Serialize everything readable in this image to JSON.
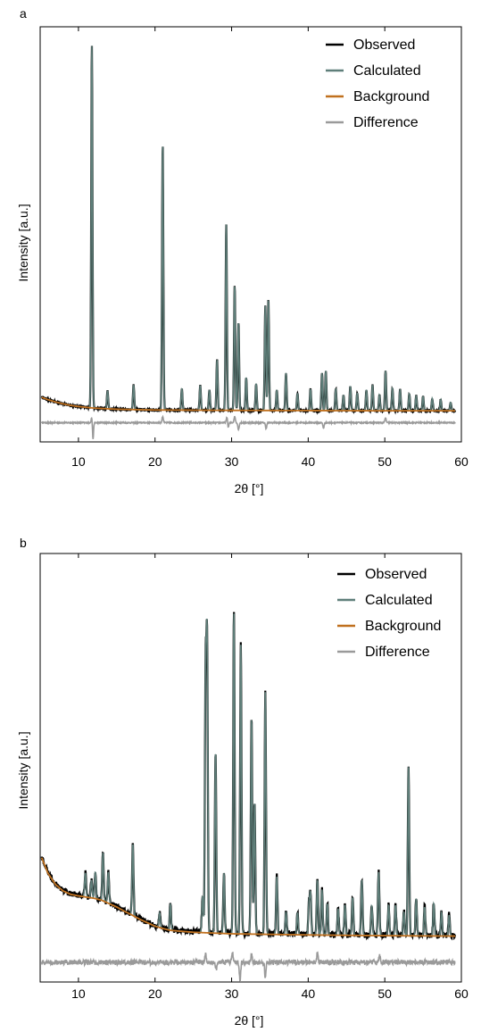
{
  "colors": {
    "observed": "#000000",
    "calculated": "#5f7f7a",
    "background": "#c0701e",
    "difference": "#9a9a9a"
  },
  "chart_data": [
    {
      "panel_label": "a",
      "type": "line",
      "xlabel": "2θ [°]",
      "ylabel": "Intensity [a.u.]",
      "xlim": [
        5,
        60
      ],
      "xticks": [
        10,
        20,
        30,
        40,
        50,
        60
      ],
      "xtick_labels": [
        "10",
        "20",
        "30",
        "40",
        "50",
        "60"
      ],
      "legend_position": "top-right",
      "legend": [
        {
          "name": "Observed",
          "color_key": "observed"
        },
        {
          "name": "Calculated",
          "color_key": "calculated"
        },
        {
          "name": "Background",
          "color_key": "background"
        },
        {
          "name": "Difference",
          "color_key": "difference"
        }
      ],
      "ylim": [
        -8,
        100
      ],
      "background_curve": [
        [
          5.2,
          3.6
        ],
        [
          6,
          3.0
        ],
        [
          7,
          2.4
        ],
        [
          8,
          1.9
        ],
        [
          9,
          1.5
        ],
        [
          10,
          1.2
        ],
        [
          12,
          0.8
        ],
        [
          15,
          0.5
        ],
        [
          20,
          0.3
        ],
        [
          30,
          0.2
        ],
        [
          40,
          0.15
        ],
        [
          50,
          0.1
        ],
        [
          59.2,
          0.1
        ]
      ],
      "peaks": [
        [
          11.75,
          94.5
        ],
        [
          13.8,
          4.7
        ],
        [
          17.2,
          6.4
        ],
        [
          21.0,
          69.5
        ],
        [
          23.5,
          5.6
        ],
        [
          25.9,
          6.5
        ],
        [
          27.1,
          5.3
        ],
        [
          28.1,
          13.2
        ],
        [
          29.3,
          48.5
        ],
        [
          30.4,
          32.6
        ],
        [
          30.9,
          22.9
        ],
        [
          31.9,
          8.6
        ],
        [
          33.2,
          7.0
        ],
        [
          34.4,
          27.2
        ],
        [
          34.8,
          29.1
        ],
        [
          35.9,
          5.4
        ],
        [
          37.1,
          9.8
        ],
        [
          38.6,
          4.5
        ],
        [
          40.3,
          5.6
        ],
        [
          41.8,
          9.8
        ],
        [
          42.3,
          10.4
        ],
        [
          43.6,
          5.7
        ],
        [
          44.6,
          4.0
        ],
        [
          45.5,
          6.4
        ],
        [
          46.4,
          4.6
        ],
        [
          47.6,
          5.5
        ],
        [
          48.4,
          6.7
        ],
        [
          49.3,
          4.1
        ],
        [
          50.1,
          10.4
        ],
        [
          51.0,
          5.9
        ],
        [
          52.0,
          5.6
        ],
        [
          53.2,
          4.5
        ],
        [
          54.1,
          4.0
        ],
        [
          55.0,
          3.8
        ],
        [
          56.2,
          3.2
        ],
        [
          57.3,
          2.9
        ],
        [
          58.6,
          2.2
        ]
      ],
      "peak_width": 0.12,
      "noise_amplitude": 0.35,
      "difference_offset": -3.0,
      "difference_spikes": [
        [
          11.75,
          1.5,
          -4.5
        ],
        [
          21.0,
          1.6
        ],
        [
          29.4,
          1.5,
          -1.5
        ],
        [
          30.4,
          1.6
        ],
        [
          30.9,
          -1.8
        ],
        [
          34.5,
          -1.5
        ],
        [
          42.0,
          -1.4
        ],
        [
          50.1,
          1.2
        ]
      ]
    },
    {
      "panel_label": "b",
      "type": "line",
      "xlabel": "2θ [°]",
      "ylabel": "Intensity [a.u.]",
      "xlim": [
        5,
        60
      ],
      "xticks": [
        10,
        20,
        30,
        40,
        50,
        60
      ],
      "xtick_labels": [
        "10",
        "20",
        "30",
        "40",
        "50",
        "60"
      ],
      "legend_position": "top-right",
      "legend": [
        {
          "name": "Observed",
          "color_key": "observed"
        },
        {
          "name": "Calculated",
          "color_key": "calculated"
        },
        {
          "name": "Background",
          "color_key": "background"
        },
        {
          "name": "Difference",
          "color_key": "difference"
        }
      ],
      "ylim": [
        -12,
        100
      ],
      "background_curve": [
        [
          5.2,
          20.5
        ],
        [
          6,
          16.5
        ],
        [
          7,
          13.5
        ],
        [
          8,
          11.8
        ],
        [
          9,
          10.9
        ],
        [
          10,
          10.5
        ],
        [
          11,
          10.2
        ],
        [
          12,
          9.9
        ],
        [
          13,
          9.4
        ],
        [
          14,
          8.5
        ],
        [
          15,
          7.6
        ],
        [
          16,
          6.5
        ],
        [
          17,
          5.5
        ],
        [
          18,
          4.4
        ],
        [
          19,
          3.5
        ],
        [
          20,
          2.6
        ],
        [
          21,
          2.0
        ],
        [
          22,
          1.5
        ],
        [
          25,
          1.0
        ],
        [
          30,
          0.6
        ],
        [
          40,
          0.3
        ],
        [
          50,
          0.1
        ],
        [
          59.2,
          0.0
        ]
      ],
      "peaks": [
        [
          10.9,
          6.3
        ],
        [
          11.7,
          4.6
        ],
        [
          12.2,
          7.0
        ],
        [
          13.2,
          12.7
        ],
        [
          13.9,
          8.1
        ],
        [
          17.1,
          18.8
        ],
        [
          20.6,
          3.8
        ],
        [
          22.0,
          6.9
        ],
        [
          26.2,
          9.5
        ],
        [
          26.6,
          67.0
        ],
        [
          26.8,
          74.0
        ],
        [
          27.9,
          47.7
        ],
        [
          29.0,
          15.8
        ],
        [
          30.3,
          84.2
        ],
        [
          31.2,
          75.6
        ],
        [
          32.6,
          56.6
        ],
        [
          33.0,
          34.3
        ],
        [
          34.4,
          63.3
        ],
        [
          35.9,
          15.1
        ],
        [
          37.1,
          6.0
        ],
        [
          38.6,
          5.8
        ],
        [
          40.1,
          8.1
        ],
        [
          40.3,
          10.5
        ],
        [
          41.2,
          14.5
        ],
        [
          41.8,
          11.9
        ],
        [
          42.5,
          8.2
        ],
        [
          43.9,
          7.0
        ],
        [
          44.8,
          8.0
        ],
        [
          45.8,
          10.0
        ],
        [
          47.0,
          14.6
        ],
        [
          48.3,
          7.8
        ],
        [
          49.2,
          16.7
        ],
        [
          50.5,
          8.0
        ],
        [
          51.4,
          8.0
        ],
        [
          52.5,
          6.3
        ],
        [
          53.1,
          44.2
        ],
        [
          54.1,
          9.8
        ],
        [
          55.2,
          7.6
        ],
        [
          56.4,
          8.6
        ],
        [
          57.4,
          6.1
        ],
        [
          58.4,
          5.5
        ]
      ],
      "peak_width": 0.13,
      "noise_amplitude": 1.4,
      "difference_offset": -7.0,
      "difference_spikes": [
        [
          26.6,
          2.5
        ],
        [
          28.0,
          -2.0
        ],
        [
          30.1,
          2.4
        ],
        [
          31.1,
          -5.0
        ],
        [
          32.6,
          2.0
        ],
        [
          34.4,
          -4.0
        ],
        [
          41.2,
          2.5
        ],
        [
          49.3,
          1.5
        ]
      ]
    }
  ]
}
